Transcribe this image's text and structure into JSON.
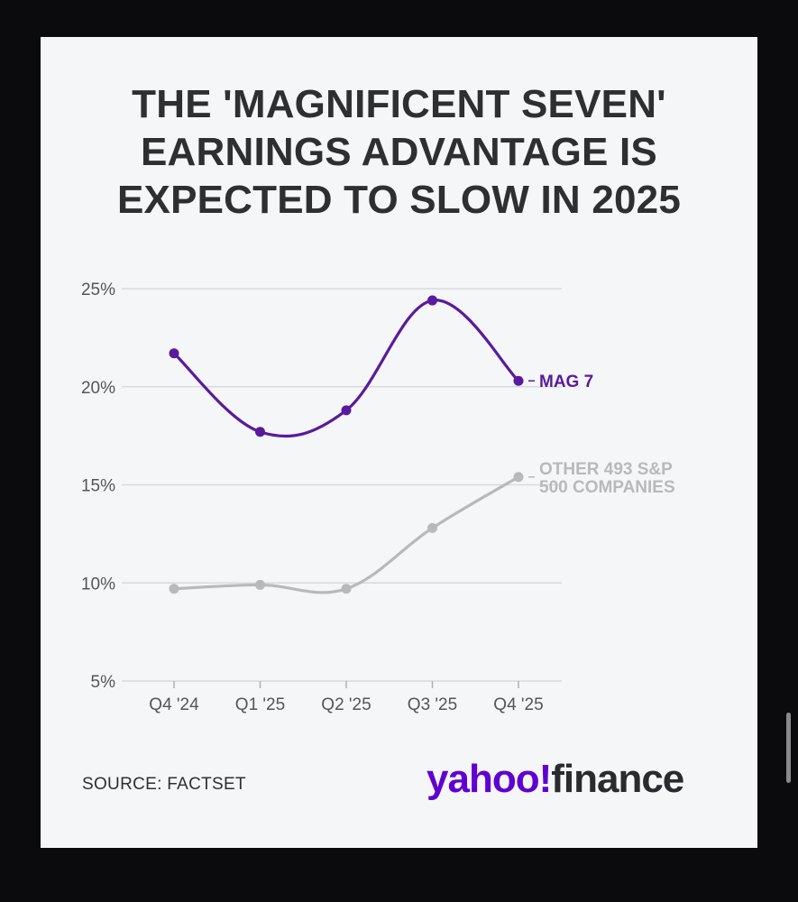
{
  "title_lines": [
    "THE 'MAGNIFICENT SEVEN'",
    "EARNINGS ADVANTAGE IS",
    "EXPECTED TO SLOW IN 2025"
  ],
  "source": "SOURCE: FACTSET",
  "logo": {
    "yahoo": "yahoo!",
    "finance": "finance"
  },
  "colors": {
    "mag7": "#5a1a9c",
    "other": "#b9b9bb",
    "grid": "#d8dadd",
    "text": "#2e2f31"
  },
  "chart_data": {
    "type": "line",
    "categories": [
      "Q4 '24",
      "Q1 '25",
      "Q2 '25",
      "Q3 '25",
      "Q4 '25"
    ],
    "y_ticks": [
      "25%",
      "20%",
      "15%",
      "10%",
      "5%"
    ],
    "ylim": [
      5,
      25
    ],
    "grid": true,
    "series": [
      {
        "name": "MAG 7",
        "label_lines": [
          "MAG 7"
        ],
        "values": [
          21.7,
          17.7,
          18.8,
          24.4,
          20.3
        ]
      },
      {
        "name": "OTHER 493 S&P 500 COMPANIES",
        "label_lines": [
          "OTHER 493 S&P",
          "500 COMPANIES"
        ],
        "values": [
          9.7,
          9.9,
          9.7,
          12.8,
          15.4
        ]
      }
    ]
  }
}
